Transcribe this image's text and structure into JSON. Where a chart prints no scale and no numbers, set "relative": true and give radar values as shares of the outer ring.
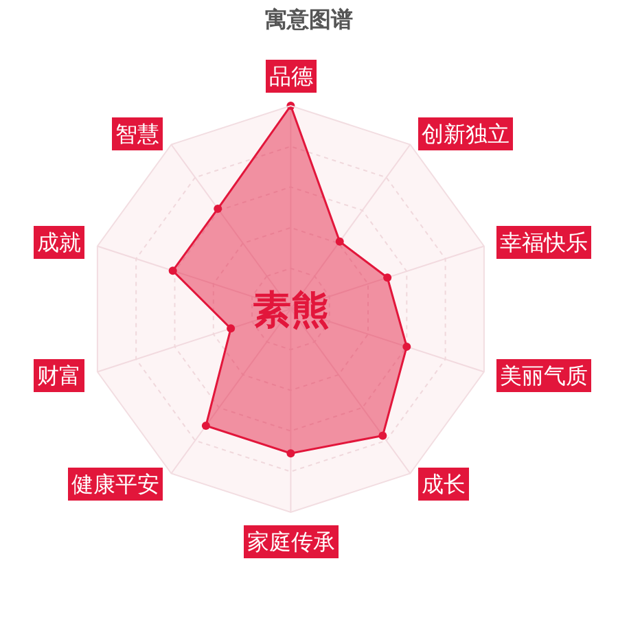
{
  "chart_data": {
    "type": "radar",
    "title": "寓意图谱",
    "categories": [
      "品德",
      "创新独立",
      "幸福快乐",
      "美丽气质",
      "成长",
      "家庭传承",
      "健康平安",
      "财富",
      "成就",
      "智慧"
    ],
    "series": [
      {
        "color": "#e2163b",
        "values": [
          1.0,
          0.41,
          0.5,
          0.6,
          0.77,
          0.71,
          0.71,
          0.31,
          0.61,
          0.61
        ]
      }
    ],
    "relative": true,
    "grid": true,
    "marker": "circle",
    "annotations": [
      "素熊"
    ]
  }
}
